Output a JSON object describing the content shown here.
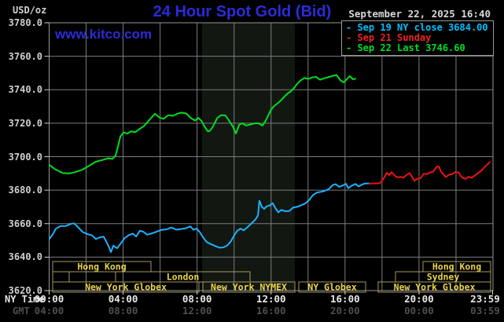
{
  "header": {
    "usd_oz": "USD/oz",
    "title": "24 Hour Spot Gold (Bid)",
    "url": "www.kitco.com",
    "date": "September 22, 2025 16:40"
  },
  "legend": [
    {
      "label": "- Sep 19 NY close 3684.00",
      "color": "#00bfff"
    },
    {
      "label": "- Sep 21 Sunday",
      "color": "#ee2222"
    },
    {
      "label": "- Sep 22 Last 3746.60",
      "color": "#00dd22"
    }
  ],
  "axis": {
    "ny_time_label": "NY Time",
    "gmt_label": "GMT"
  },
  "colors": {
    "background": "#000000",
    "grid": "#7d7d7d",
    "plot_border": "#999999",
    "nymex_band": "#121712",
    "title_blue": "#2b2bd9",
    "tick_text": "#cfcfcf",
    "ny_time_text": "#e8e8e8",
    "gmt_text": "#4f4f4f",
    "session_border": "#a89858",
    "session_text": "#e8d44c",
    "sep19_line": "#1ab2ff",
    "sep21_line": "#ee1111",
    "sep22_line": "#00dd22"
  },
  "chart_data": {
    "type": "line",
    "title": "24 Hour Spot Gold (Bid)",
    "ylabel": "USD/oz",
    "xlabel": "NY Time (hours)",
    "xlim": [
      0,
      24
    ],
    "ylim": [
      3620,
      3780
    ],
    "grid": true,
    "legend_position": "top-right",
    "y_ticks": [
      "3780.0",
      "3760.0",
      "3740.0",
      "3720.0",
      "3700.0",
      "3680.0",
      "3660.0",
      "3640.0",
      "3620.0"
    ],
    "x_ticks_ny_time": [
      "00:00",
      "04:00",
      "08:00",
      "12:00",
      "16:00",
      "20:00",
      "23:59"
    ],
    "x_ticks_gmt": [
      "04:00",
      "08:00",
      "12:00",
      "16:00",
      "20:00",
      "00:00",
      "03:59"
    ],
    "x_tick_hours": [
      0,
      4,
      8,
      12,
      16,
      20,
      23.98
    ],
    "x_gridline_step_hours": 2,
    "y_gridline_step": 20,
    "nymex_band_hours": [
      8.27,
      13.29
    ],
    "series": [
      {
        "name": "Sep 19 NY close 3684.00",
        "color": "#1ab2ff",
        "points": [
          [
            0.02,
            3651
          ],
          [
            0.19,
            3653.5
          ],
          [
            0.36,
            3657
          ],
          [
            0.62,
            3658.5
          ],
          [
            0.91,
            3658.6
          ],
          [
            1.17,
            3659.8
          ],
          [
            1.34,
            3660.2
          ],
          [
            1.55,
            3658
          ],
          [
            1.81,
            3655
          ],
          [
            2.06,
            3653.8
          ],
          [
            2.32,
            3653
          ],
          [
            2.53,
            3650.8
          ],
          [
            2.74,
            3651.8
          ],
          [
            2.95,
            3652.2
          ],
          [
            3.17,
            3647.5
          ],
          [
            3.34,
            3643
          ],
          [
            3.47,
            3646.8
          ],
          [
            3.68,
            3645.3
          ],
          [
            3.89,
            3648.5
          ],
          [
            4.1,
            3651.5
          ],
          [
            4.32,
            3653.2
          ],
          [
            4.53,
            3654
          ],
          [
            4.7,
            3652.3
          ],
          [
            4.91,
            3655.8
          ],
          [
            5.12,
            3655
          ],
          [
            5.29,
            3653.4
          ],
          [
            5.51,
            3654
          ],
          [
            5.76,
            3655
          ],
          [
            6.06,
            3656.2
          ],
          [
            6.36,
            3656.6
          ],
          [
            6.61,
            3657.7
          ],
          [
            6.87,
            3656.4
          ],
          [
            7.12,
            3656.8
          ],
          [
            7.38,
            3657.2
          ],
          [
            7.63,
            3658.4
          ],
          [
            7.8,
            3656.3
          ],
          [
            7.97,
            3657
          ],
          [
            8.14,
            3655
          ],
          [
            8.31,
            3652
          ],
          [
            8.52,
            3649
          ],
          [
            8.74,
            3647.8
          ],
          [
            8.99,
            3646.6
          ],
          [
            9.21,
            3645.6
          ],
          [
            9.42,
            3645.8
          ],
          [
            9.63,
            3647
          ],
          [
            9.8,
            3649
          ],
          [
            10.01,
            3653
          ],
          [
            10.18,
            3655.8
          ],
          [
            10.35,
            3657
          ],
          [
            10.52,
            3656
          ],
          [
            10.74,
            3658
          ],
          [
            10.95,
            3660.3
          ],
          [
            11.16,
            3662.5
          ],
          [
            11.29,
            3665
          ],
          [
            11.37,
            3673.7
          ],
          [
            11.5,
            3670
          ],
          [
            11.63,
            3668.8
          ],
          [
            11.75,
            3670.3
          ],
          [
            11.92,
            3670.8
          ],
          [
            12.09,
            3672.2
          ],
          [
            12.22,
            3669.5
          ],
          [
            12.39,
            3666.8
          ],
          [
            12.56,
            3668.2
          ],
          [
            12.78,
            3667.4
          ],
          [
            12.99,
            3667.6
          ],
          [
            13.2,
            3669.7
          ],
          [
            13.41,
            3670
          ],
          [
            13.63,
            3671
          ],
          [
            13.84,
            3672
          ],
          [
            14.05,
            3674
          ],
          [
            14.26,
            3677
          ],
          [
            14.48,
            3678.6
          ],
          [
            14.69,
            3679
          ],
          [
            14.9,
            3679.6
          ],
          [
            15.11,
            3680.5
          ],
          [
            15.33,
            3683
          ],
          [
            15.5,
            3683.6
          ],
          [
            15.67,
            3682
          ],
          [
            15.84,
            3682.6
          ],
          [
            16.05,
            3683.8
          ],
          [
            16.18,
            3681.2
          ],
          [
            16.35,
            3682.6
          ],
          [
            16.56,
            3683.7
          ],
          [
            16.73,
            3682.2
          ],
          [
            16.9,
            3683.2
          ],
          [
            17.07,
            3684
          ],
          [
            17.32,
            3684
          ]
        ]
      },
      {
        "name": "Sep 21 Sunday",
        "color": "#ee1111",
        "points": [
          [
            17.32,
            3684
          ],
          [
            17.62,
            3684
          ],
          [
            17.88,
            3684.2
          ],
          [
            18.09,
            3687
          ],
          [
            18.26,
            3690.4
          ],
          [
            18.39,
            3689
          ],
          [
            18.52,
            3690.8
          ],
          [
            18.69,
            3688.6
          ],
          [
            18.86,
            3687.6
          ],
          [
            19.03,
            3688
          ],
          [
            19.15,
            3687.4
          ],
          [
            19.32,
            3689
          ],
          [
            19.49,
            3690.2
          ],
          [
            19.62,
            3688
          ],
          [
            19.75,
            3685.6
          ],
          [
            19.92,
            3686.8
          ],
          [
            20.09,
            3687.2
          ],
          [
            20.26,
            3689.8
          ],
          [
            20.43,
            3689.6
          ],
          [
            20.6,
            3690.6
          ],
          [
            20.77,
            3691
          ],
          [
            20.94,
            3693.8
          ],
          [
            21.07,
            3694.2
          ],
          [
            21.19,
            3691
          ],
          [
            21.32,
            3689.4
          ],
          [
            21.45,
            3687.8
          ],
          [
            21.62,
            3689.2
          ],
          [
            21.79,
            3689.6
          ],
          [
            21.96,
            3690.8
          ],
          [
            22.13,
            3690.6
          ],
          [
            22.26,
            3688.4
          ],
          [
            22.38,
            3687.2
          ],
          [
            22.51,
            3686.8
          ],
          [
            22.68,
            3688
          ],
          [
            22.85,
            3687.4
          ],
          [
            23.02,
            3688.8
          ],
          [
            23.19,
            3690.2
          ],
          [
            23.36,
            3691.6
          ],
          [
            23.53,
            3693.6
          ],
          [
            23.7,
            3695.4
          ],
          [
            23.83,
            3696.8
          ]
        ]
      },
      {
        "name": "Sep 22 Last 3746.60",
        "color": "#00dd22",
        "points": [
          [
            0.02,
            3695
          ],
          [
            0.32,
            3692.5
          ],
          [
            0.74,
            3690.2
          ],
          [
            1.08,
            3690
          ],
          [
            1.38,
            3690.7
          ],
          [
            1.81,
            3692.3
          ],
          [
            2.15,
            3694.5
          ],
          [
            2.53,
            3697
          ],
          [
            2.87,
            3698
          ],
          [
            3.17,
            3699
          ],
          [
            3.42,
            3698.7
          ],
          [
            3.59,
            3700.5
          ],
          [
            3.72,
            3706
          ],
          [
            3.85,
            3712
          ],
          [
            4.02,
            3714.5
          ],
          [
            4.23,
            3713.8
          ],
          [
            4.44,
            3715.2
          ],
          [
            4.66,
            3714.6
          ],
          [
            4.87,
            3716.4
          ],
          [
            5.12,
            3718.2
          ],
          [
            5.42,
            3722
          ],
          [
            5.72,
            3725.6
          ],
          [
            5.97,
            3723.4
          ],
          [
            6.19,
            3722.6
          ],
          [
            6.44,
            3724.8
          ],
          [
            6.7,
            3724.4
          ],
          [
            6.95,
            3725.7
          ],
          [
            7.16,
            3726.3
          ],
          [
            7.42,
            3725.8
          ],
          [
            7.67,
            3723
          ],
          [
            7.89,
            3721.6
          ],
          [
            8.06,
            3723.2
          ],
          [
            8.23,
            3721.5
          ],
          [
            8.4,
            3718
          ],
          [
            8.57,
            3715.2
          ],
          [
            8.69,
            3715.4
          ],
          [
            8.86,
            3718
          ],
          [
            9.08,
            3723
          ],
          [
            9.29,
            3724.8
          ],
          [
            9.54,
            3724.6
          ],
          [
            9.71,
            3721.8
          ],
          [
            9.93,
            3718
          ],
          [
            10.1,
            3713.9
          ],
          [
            10.27,
            3719
          ],
          [
            10.44,
            3720
          ],
          [
            10.65,
            3718.6
          ],
          [
            10.86,
            3719.2
          ],
          [
            11.08,
            3719.8
          ],
          [
            11.29,
            3720
          ],
          [
            11.54,
            3718.6
          ],
          [
            11.71,
            3721.5
          ],
          [
            11.84,
            3724.5
          ],
          [
            11.97,
            3727.5
          ],
          [
            12.14,
            3730
          ],
          [
            12.31,
            3731.5
          ],
          [
            12.52,
            3733.5
          ],
          [
            12.73,
            3736
          ],
          [
            12.9,
            3737.8
          ],
          [
            13.07,
            3739
          ],
          [
            13.24,
            3741
          ],
          [
            13.41,
            3743.5
          ],
          [
            13.58,
            3745.4
          ],
          [
            13.8,
            3747
          ],
          [
            14.01,
            3746.5
          ],
          [
            14.22,
            3747.3
          ],
          [
            14.43,
            3747.7
          ],
          [
            14.65,
            3746
          ],
          [
            14.86,
            3746.8
          ],
          [
            15.07,
            3747.4
          ],
          [
            15.33,
            3748.3
          ],
          [
            15.54,
            3748.8
          ],
          [
            15.75,
            3745.6
          ],
          [
            15.92,
            3744.4
          ],
          [
            16.09,
            3746.2
          ],
          [
            16.26,
            3748.2
          ],
          [
            16.43,
            3746.2
          ],
          [
            16.56,
            3746.6
          ]
        ]
      }
    ]
  },
  "sessions": {
    "rows": [
      [
        {
          "label": "Hong Kong",
          "x1": 67,
          "x2": 192
        },
        {
          "label": "Hong Kong",
          "x1": 538,
          "x2": 624
        }
      ],
      [
        {
          "label": "",
          "x1": 67,
          "x2": 88
        },
        {
          "label": "",
          "x1": 88,
          "x2": 147
        },
        {
          "label": "London",
          "x1": 147,
          "x2": 318
        },
        {
          "label": "Sydney",
          "x1": 503,
          "x2": 624
        }
      ],
      [
        {
          "label": "New York Globex",
          "x1": 67,
          "x2": 253
        },
        {
          "label": "New York NYMEX",
          "x1": 258,
          "x2": 375
        },
        {
          "label": "NY Globex",
          "x1": 380,
          "x2": 465
        },
        {
          "label": "New York Globex",
          "x1": 481,
          "x2": 624
        }
      ]
    ]
  }
}
